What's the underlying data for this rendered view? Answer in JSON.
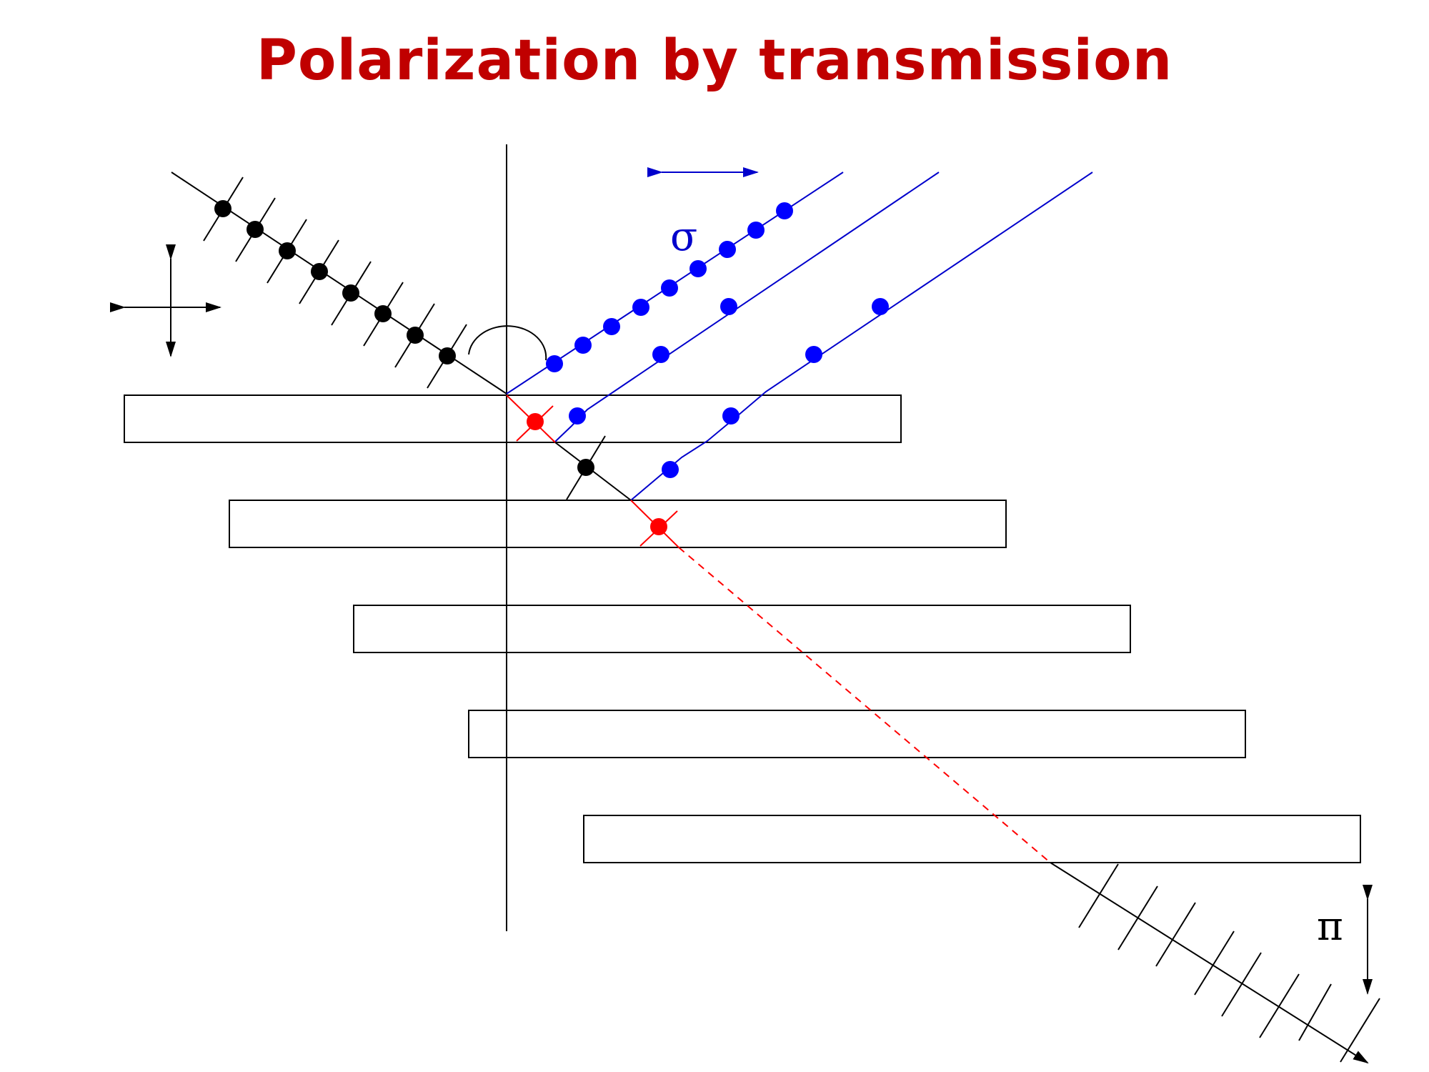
{
  "title": "Polarization by transmission",
  "labels": {
    "sigma": "σ",
    "pi": "π"
  },
  "colors": {
    "title": "#c00000",
    "incident": "#000000",
    "reflected": "#0000cc",
    "transmitted": "#ff0000",
    "outline": "#000000"
  },
  "plates": 5
}
